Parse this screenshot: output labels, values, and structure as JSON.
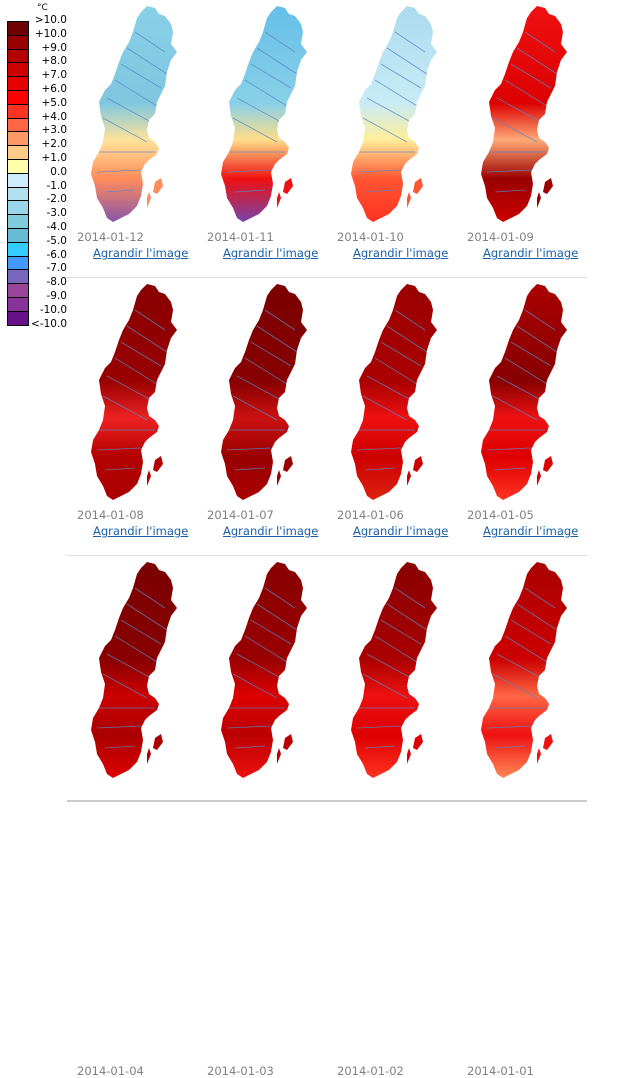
{
  "legend": {
    "unit": "°C",
    "labels": [
      ">10.0",
      "+10.0",
      "+9.0",
      "+8.0",
      "+7.0",
      "+6.0",
      "+5.0",
      "+4.0",
      "+3.0",
      "+2.0",
      "+1.0",
      "0.0",
      "-1.0",
      "-2.0",
      "-3.0",
      "-4.0",
      "-5.0",
      "-6.0",
      "-7.0",
      "-8.0",
      "-9.0",
      "-10.0",
      "<-10.0"
    ],
    "colors": [
      "#6e0000",
      "#990000",
      "#b30000",
      "#cc0000",
      "#e60000",
      "#ff0000",
      "#ff3322",
      "#ff6644",
      "#ff9966",
      "#ffcc88",
      "#ffffaa",
      "#cceeff",
      "#b3e0ee",
      "#99d6ea",
      "#80ccdd",
      "#66bbd5",
      "#33ccff",
      "#4499ff",
      "#7766bb",
      "#994499",
      "#883399",
      "#661188"
    ]
  },
  "link_label": "Agrandir l'image",
  "maps": [
    {
      "date": "2014-01-12",
      "palette": [
        "#88d0e8",
        "#7fc7e0",
        "#ffe39a",
        "#ff8c5a",
        "#8855aa"
      ]
    },
    {
      "date": "2014-01-11",
      "palette": [
        "#66bfe8",
        "#88d0e8",
        "#ffdd88",
        "#ee1111",
        "#7744aa"
      ]
    },
    {
      "date": "2014-01-10",
      "palette": [
        "#aadbee",
        "#c8ebf6",
        "#ffee99",
        "#ff5533",
        "#ff3322"
      ]
    },
    {
      "date": "2014-01-09",
      "palette": [
        "#ee1111",
        "#dd0000",
        "#ffaa77",
        "#990000",
        "#cc0000"
      ]
    },
    {
      "date": "2014-01-08",
      "palette": [
        "#880000",
        "#990000",
        "#ee2222",
        "#b30000",
        "#aa0000"
      ]
    },
    {
      "date": "2014-01-07",
      "palette": [
        "#7a0000",
        "#880000",
        "#cc1111",
        "#990000",
        "#aa0000"
      ]
    },
    {
      "date": "2014-01-06",
      "palette": [
        "#990000",
        "#aa0000",
        "#ee1111",
        "#cc0000",
        "#dd2211"
      ]
    },
    {
      "date": "2014-01-05",
      "palette": [
        "#aa0000",
        "#880000",
        "#ee1111",
        "#dd0000",
        "#ff3322"
      ]
    },
    {
      "date": "2014-01-04",
      "palette": [
        "#7a0000",
        "#880000",
        "#cc0000",
        "#aa0000",
        "#dd0000"
      ]
    },
    {
      "date": "2014-01-03",
      "palette": [
        "#880000",
        "#990000",
        "#dd0000",
        "#bb0000",
        "#ee1111"
      ]
    },
    {
      "date": "2014-01-02",
      "palette": [
        "#880000",
        "#aa0000",
        "#ee1111",
        "#dd0000",
        "#ff3322"
      ]
    },
    {
      "date": "2014-01-01",
      "palette": [
        "#aa0000",
        "#cc0000",
        "#ff6644",
        "#ee1111",
        "#ff8855"
      ]
    }
  ]
}
